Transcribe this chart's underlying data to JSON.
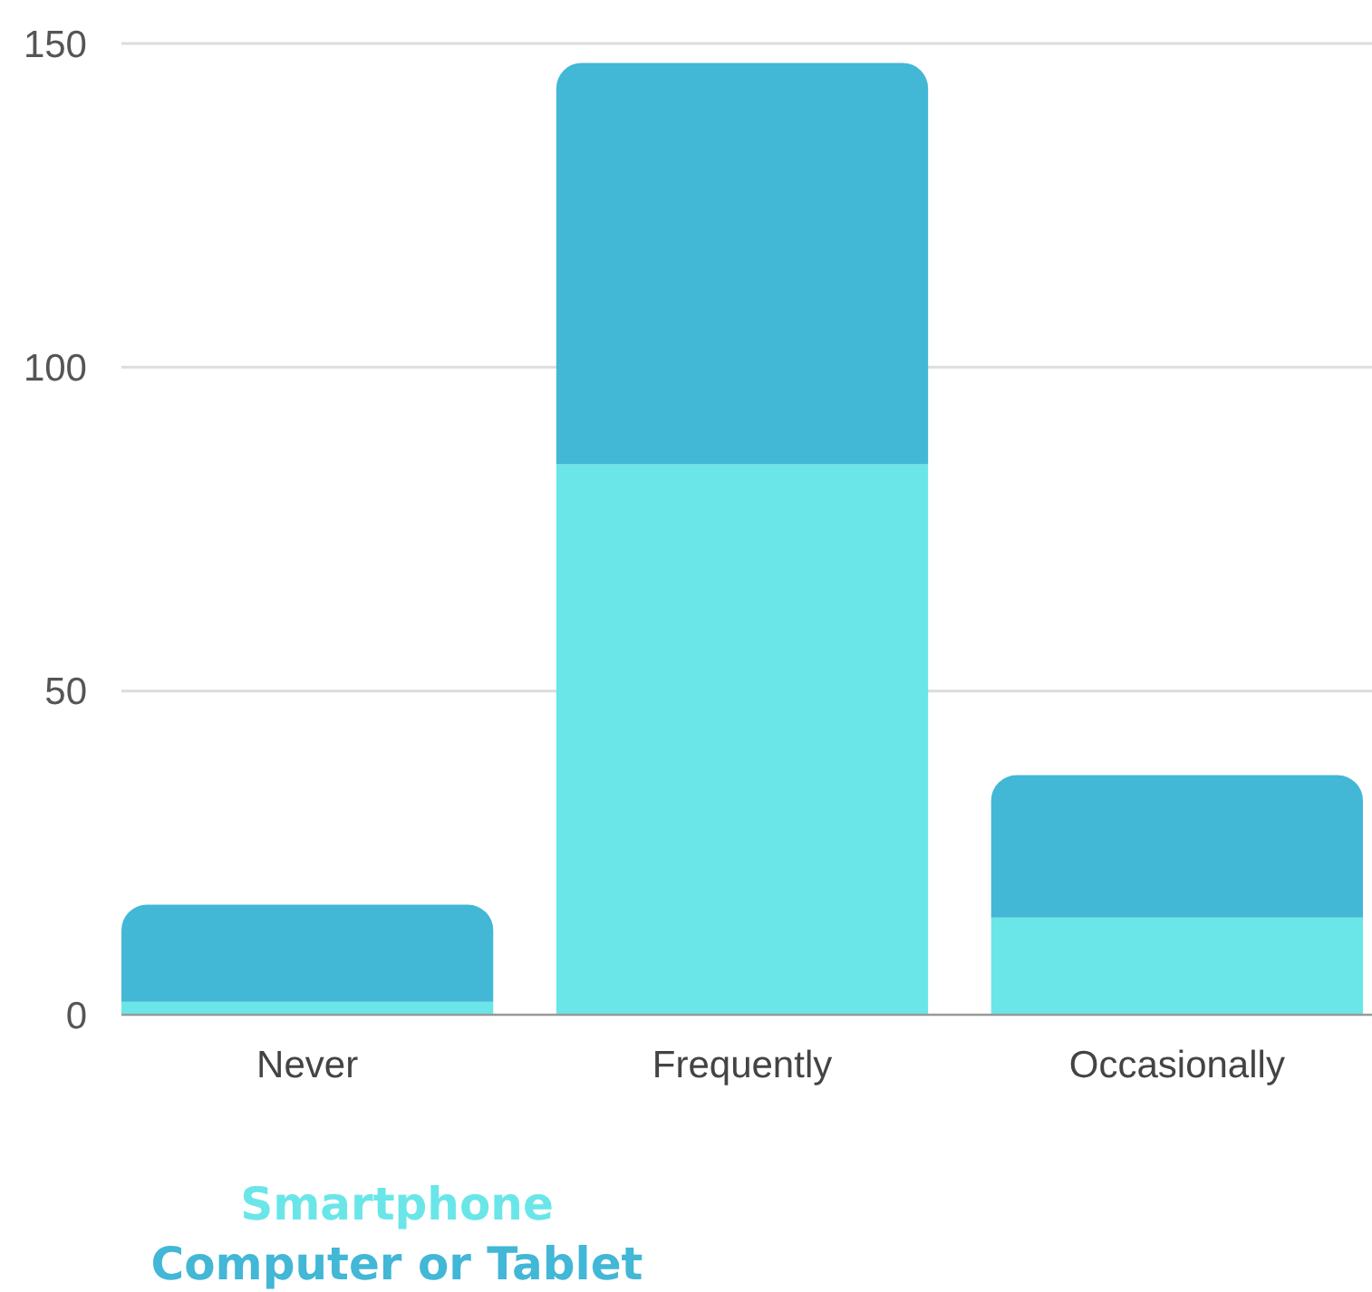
{
  "chart_data": {
    "type": "bar",
    "stacked": true,
    "categories": [
      "Never",
      "Frequently",
      "Occasionally"
    ],
    "series": [
      {
        "name": "Smartphone",
        "color": "#6ae6e9",
        "values": [
          2,
          85,
          15
        ]
      },
      {
        "name": "Computer or Tablet",
        "color": "#42b7d6",
        "values": [
          15,
          62,
          22
        ]
      }
    ],
    "ylim": [
      0,
      150
    ],
    "yticks": [
      0,
      50,
      100,
      150
    ],
    "grid": "y",
    "legend": "bottom left"
  }
}
